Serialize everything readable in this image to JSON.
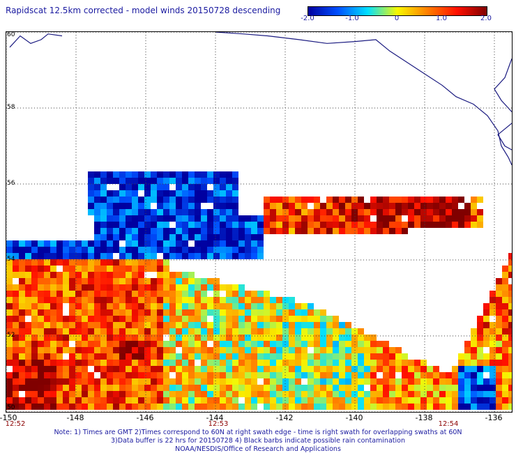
{
  "title": "Rapidscat 12.5km corrected - model winds 20150728 descending",
  "colorbar": {
    "ticks": [
      "-2.0",
      "-1.0",
      "0",
      "1.0",
      "2.0"
    ],
    "tick_values": [
      -2.0,
      -1.0,
      0.0,
      1.0,
      2.0
    ],
    "range": [
      -2.0,
      2.0
    ],
    "colors": [
      "#0000a0",
      "#0050ff",
      "#00e0ff",
      "#f8f800",
      "#ff8000",
      "#ff1000",
      "#800000"
    ]
  },
  "map": {
    "lon_range": [
      -150,
      -135.5
    ],
    "lat_range": [
      50,
      60
    ],
    "lat_labels": [
      {
        "text": "60",
        "value": 60
      },
      {
        "text": "58",
        "value": 58
      },
      {
        "text": "56",
        "value": 56
      },
      {
        "text": "54",
        "value": 54
      },
      {
        "text": "52",
        "value": 52
      },
      {
        "text": "50",
        "value": 50
      }
    ],
    "lon_labels": [
      {
        "text": "-150",
        "value": -150
      },
      {
        "text": "-148",
        "value": -148
      },
      {
        "text": "-146",
        "value": -146
      },
      {
        "text": "-144",
        "value": -144
      },
      {
        "text": "-142",
        "value": -142
      },
      {
        "text": "-140",
        "value": -140
      },
      {
        "text": "-138",
        "value": -138
      },
      {
        "text": "-136",
        "value": -136
      }
    ],
    "time_labels": [
      {
        "text": "12:52",
        "lon": -150
      },
      {
        "text": "12:53",
        "lon": -143.9
      },
      {
        "text": "12:54",
        "lon": -137.3
      }
    ],
    "grid": "dotted",
    "coastline_color": "#1a1a80"
  },
  "notes": [
    "Note: 1) Times are GMT 2)Times correspond to 60N at right swath edge - time is right swath for overlapping swaths at 60N",
    "3)Data buffer is 22 hrs for 20150728 4) Black barbs indicate possible rain contamination",
    "NOAA/NESDIS/Office of Research and Applications"
  ]
}
